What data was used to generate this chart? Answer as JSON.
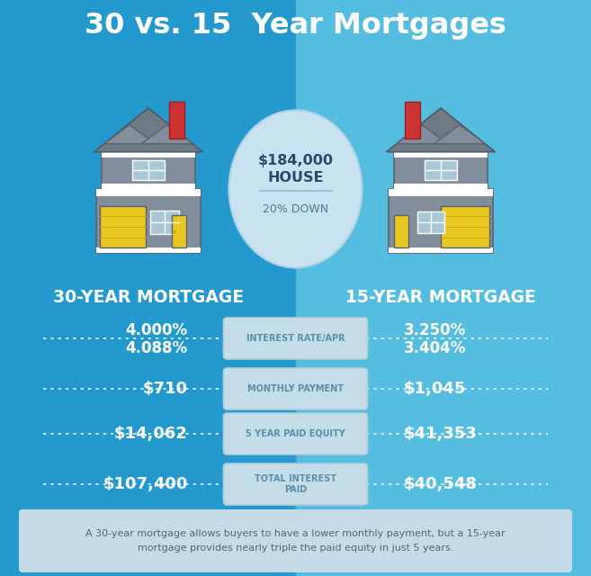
{
  "title": "30 vs. 15  Year Mortgages",
  "title_color": "#ffffff",
  "bg_left_color": "#2499CE",
  "bg_right_color": "#55BDDF",
  "house_price_line1": "$184,000",
  "house_price_line2": "HOUSE",
  "down_payment": "20% DOWN",
  "label_30yr": "30-YEAR MORTGAGE",
  "label_15yr": "15-YEAR MORTGAGE",
  "rows": [
    {
      "label": "INTEREST RATE/APR",
      "left_val": "4.000%",
      "left_val2": "4.088%",
      "right_val": "3.250%",
      "right_val2": "3.404%",
      "has_two_lines": true
    },
    {
      "label": "MONTHLY PAYMENT",
      "left_val": "$710",
      "left_val2": "",
      "right_val": "$1,045",
      "right_val2": "",
      "has_two_lines": false
    },
    {
      "label": "5 YEAR PAID EQUITY",
      "left_val": "$14,062",
      "left_val2": "",
      "right_val": "$41,353",
      "right_val2": "",
      "has_two_lines": false
    },
    {
      "label": "TOTAL INTEREST\nPAID",
      "left_val": "$107,400",
      "left_val2": "",
      "right_val": "$40,548",
      "right_val2": "",
      "has_two_lines": false
    }
  ],
  "footer_text": "A 30-year mortgage allows buyers to have a lower monthly payment, but a 15-year\nmortgage provides nearly triple the paid equity in just 5 years.",
  "badge_fill": "#C5DDE8",
  "badge_edge": "#B0CDD8",
  "footer_bg": "#C5DCE8",
  "value_color": "#ffffff",
  "label_text_color": "#5A8FA8",
  "divider_color": "#3AAAD0"
}
